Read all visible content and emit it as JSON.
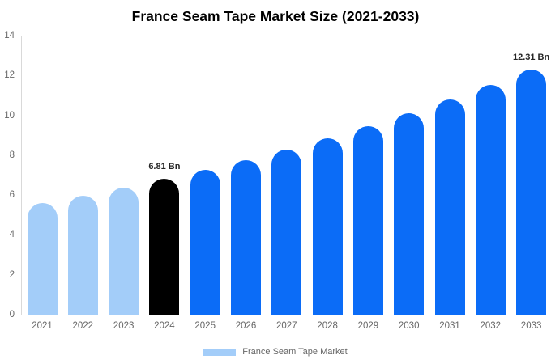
{
  "title": "France Seam Tape Market Size (2021-2033)",
  "colors": {
    "background": "#ffffff",
    "axis_line": "#d9d9d9",
    "tick_text": "#666666",
    "annotation_text": "#262626",
    "historical_bar": "#a3cdf9",
    "base_year_bar": "#000000",
    "forecast_bar": "#0b6cf7"
  },
  "chart_data": {
    "type": "bar",
    "title": "France Seam Tape Market Size (2021-2033)",
    "categories": [
      "2021",
      "2022",
      "2023",
      "2024",
      "2025",
      "2026",
      "2027",
      "2028",
      "2029",
      "2030",
      "2031",
      "2032",
      "2033"
    ],
    "values": [
      5.59,
      5.97,
      6.38,
      6.81,
      7.27,
      7.77,
      8.3,
      8.86,
      9.46,
      10.11,
      10.79,
      11.53,
      12.31
    ],
    "unit": "Bn",
    "bar_colors": [
      "#a3cdf9",
      "#a3cdf9",
      "#a3cdf9",
      "#000000",
      "#0b6cf7",
      "#0b6cf7",
      "#0b6cf7",
      "#0b6cf7",
      "#0b6cf7",
      "#0b6cf7",
      "#0b6cf7",
      "#0b6cf7",
      "#0b6cf7"
    ],
    "annotations": [
      {
        "category": "2024",
        "text": "6.81 Bn"
      },
      {
        "category": "2033",
        "text": "12.31 Bn"
      }
    ],
    "xlabel": "",
    "ylabel": "",
    "ylim": [
      0,
      14
    ],
    "yticks": [
      0,
      2,
      4,
      6,
      8,
      10,
      12,
      14
    ],
    "grid": false,
    "legend": {
      "position": "bottom",
      "items": [
        {
          "label": "France Seam Tape Market",
          "color": "#a3cdf9"
        }
      ]
    }
  }
}
